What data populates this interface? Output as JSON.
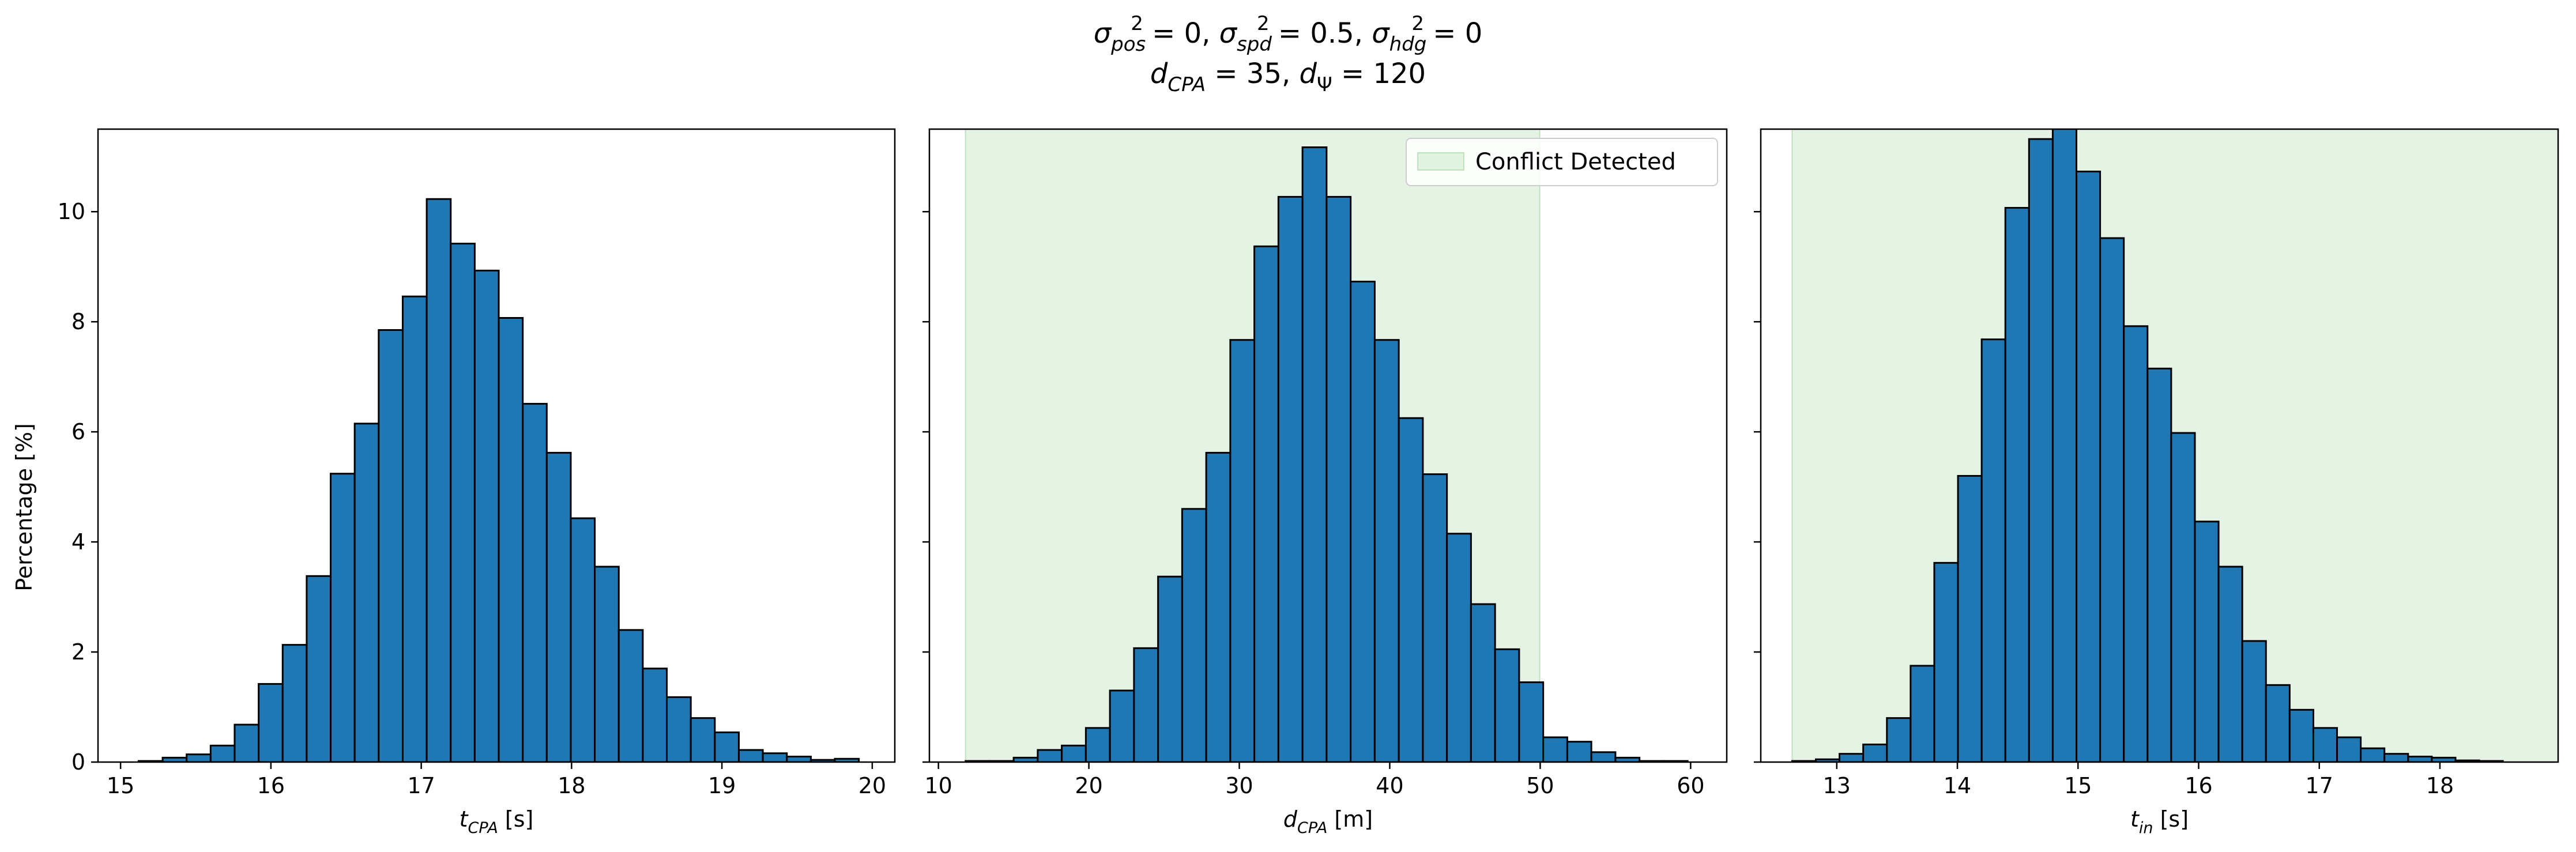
{
  "figure": {
    "title_line1": {
      "pieces": [
        {
          "t": "σ",
          "style": "italic"
        },
        {
          "t": "pos",
          "style": "subitalic"
        },
        {
          "t": "2",
          "style": "sup"
        },
        {
          "t": " = 0, ",
          "style": "normal"
        },
        {
          "t": "σ",
          "style": "italic"
        },
        {
          "t": "spd",
          "style": "subitalic"
        },
        {
          "t": "2",
          "style": "sup"
        },
        {
          "t": " = 0.5, ",
          "style": "normal"
        },
        {
          "t": "σ",
          "style": "italic"
        },
        {
          "t": "hdg",
          "style": "subitalic"
        },
        {
          "t": "2",
          "style": "sup"
        },
        {
          "t": " = 0",
          "style": "normal"
        }
      ]
    },
    "title_line2": {
      "pieces": [
        {
          "t": "d",
          "style": "italic"
        },
        {
          "t": "CPA",
          "style": "subitalic"
        },
        {
          "t": " = 35, ",
          "style": "normal"
        },
        {
          "t": "d",
          "style": "italic"
        },
        {
          "t": "Ψ",
          "style": "sub"
        },
        {
          "t": " = 120",
          "style": "normal"
        }
      ]
    },
    "shared_ylabel": "Percentage [%]",
    "colors": {
      "bar_fill": "#1f77b4",
      "bar_edge": "#000000",
      "span_fill": "#2ca02c",
      "span_opacity": 0.12
    }
  },
  "chart_data": [
    {
      "type": "bar",
      "subtype": "histogram",
      "xlabel": {
        "pieces": [
          {
            "t": "t",
            "style": "italic"
          },
          {
            "t": "CPA",
            "style": "subitalic"
          },
          {
            "t": " [s]",
            "style": "normal"
          }
        ]
      },
      "ylabel": "Percentage [%]",
      "xlim": [
        14.85,
        20.15
      ],
      "ylim": [
        0,
        11.5
      ],
      "xticks": [
        15,
        16,
        17,
        18,
        19,
        20
      ],
      "yticks": [
        0,
        2,
        4,
        6,
        8,
        10
      ],
      "bin_start": 15.12,
      "bin_width": 0.1597,
      "values": [
        0.02,
        0.08,
        0.14,
        0.3,
        0.68,
        1.42,
        2.13,
        3.38,
        5.24,
        6.15,
        7.85,
        8.46,
        10.23,
        9.42,
        8.93,
        8.07,
        6.51,
        5.62,
        4.43,
        3.55,
        2.4,
        1.7,
        1.18,
        0.8,
        0.54,
        0.22,
        0.16,
        0.1,
        0.04,
        0.06
      ]
    },
    {
      "type": "bar",
      "subtype": "histogram",
      "xlabel": {
        "pieces": [
          {
            "t": "d",
            "style": "italic"
          },
          {
            "t": "CPA",
            "style": "subitalic"
          },
          {
            "t": " [m]",
            "style": "normal"
          }
        ]
      },
      "xlim": [
        9.4,
        62.4
      ],
      "ylim": [
        0,
        11.5
      ],
      "xticks": [
        10,
        20,
        30,
        40,
        50,
        60
      ],
      "yticks": [
        0,
        2,
        4,
        6,
        8,
        10
      ],
      "bin_start": 11.8,
      "bin_width": 1.6,
      "values": [
        0.02,
        0.02,
        0.08,
        0.22,
        0.3,
        0.62,
        1.3,
        2.07,
        3.37,
        4.6,
        5.62,
        7.67,
        9.37,
        10.27,
        11.17,
        10.27,
        8.73,
        7.67,
        6.25,
        5.23,
        4.15,
        2.87,
        2.05,
        1.45,
        0.45,
        0.37,
        0.18,
        0.08,
        0.02,
        0.02
      ],
      "highlight_span": {
        "x0": 11.8,
        "x1": 49.97
      },
      "legend": {
        "label": "Conflict Detected",
        "position": "upper right"
      }
    },
    {
      "type": "bar",
      "subtype": "histogram",
      "xlabel": {
        "pieces": [
          {
            "t": "t",
            "style": "italic"
          },
          {
            "t": "in",
            "style": "subitalic"
          },
          {
            "t": " [s]",
            "style": "normal"
          }
        ]
      },
      "xlim": [
        12.37,
        18.98
      ],
      "ylim": [
        0,
        11.5
      ],
      "xticks": [
        13,
        14,
        15,
        16,
        17,
        18
      ],
      "yticks": [
        0,
        2,
        4,
        6,
        8,
        10
      ],
      "bin_start": 12.63,
      "bin_width": 0.1964,
      "values": [
        0.02,
        0.05,
        0.15,
        0.32,
        0.8,
        1.75,
        3.62,
        5.2,
        7.68,
        10.07,
        11.32,
        11.57,
        10.73,
        9.52,
        7.92,
        7.15,
        5.98,
        4.37,
        3.55,
        2.2,
        1.4,
        0.95,
        0.62,
        0.45,
        0.25,
        0.15,
        0.1,
        0.08,
        0.03,
        0.02
      ],
      "highlight_span": {
        "x0": 12.63,
        "x1": 18.98
      }
    }
  ]
}
